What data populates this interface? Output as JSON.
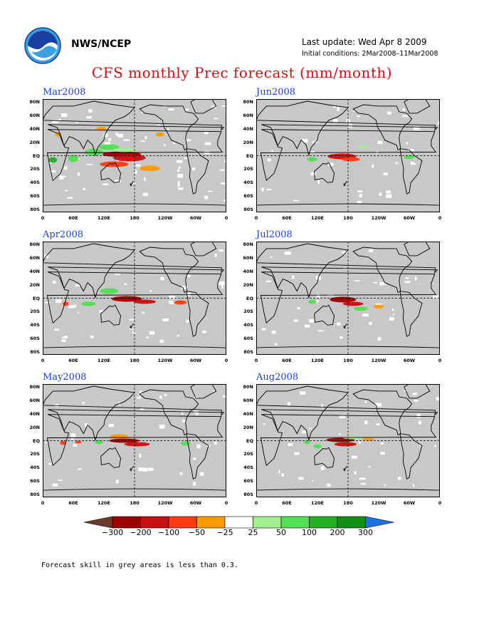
{
  "header": {
    "agency": "NWS/NCEP",
    "last_update": "Last update: Wed Apr 8 2009",
    "initial_conditions": "Initial conditions: 2Mar2008–11Mar2008",
    "title": "CFS monthly Prec forecast (mm/month)"
  },
  "panels": [
    {
      "id": "mar",
      "title": "Mar2008"
    },
    {
      "id": "jun",
      "title": "Jun2008"
    },
    {
      "id": "apr",
      "title": "Apr2008"
    },
    {
      "id": "jul",
      "title": "Jul2008"
    },
    {
      "id": "may",
      "title": "May2008"
    },
    {
      "id": "aug",
      "title": "Aug2008"
    }
  ],
  "axes": {
    "lat_labels": [
      "80N",
      "60N",
      "40N",
      "20N",
      "EQ",
      "20S",
      "40S",
      "60S",
      "80S"
    ],
    "lon_labels": [
      "0",
      "60E",
      "120E",
      "180",
      "120W",
      "60W",
      "0"
    ]
  },
  "colorbar": {
    "labels": [
      "−300",
      "−200",
      "−100",
      "−50",
      "−25",
      "25",
      "50",
      "100",
      "200",
      "300"
    ],
    "colors": [
      "#6b3a2a",
      "#a00000",
      "#c81010",
      "#ff3a10",
      "#ff9a00",
      "#ffffff",
      "#a0f090",
      "#50e050",
      "#20b020",
      "#109010",
      "#2070e0"
    ]
  },
  "colors": {
    "map_background": "#c8c8c8",
    "title_red": "#d01010",
    "panel_title_blue": "#1a3fd0"
  },
  "footnote": "Forecast skill in grey areas is less than 0.3."
}
